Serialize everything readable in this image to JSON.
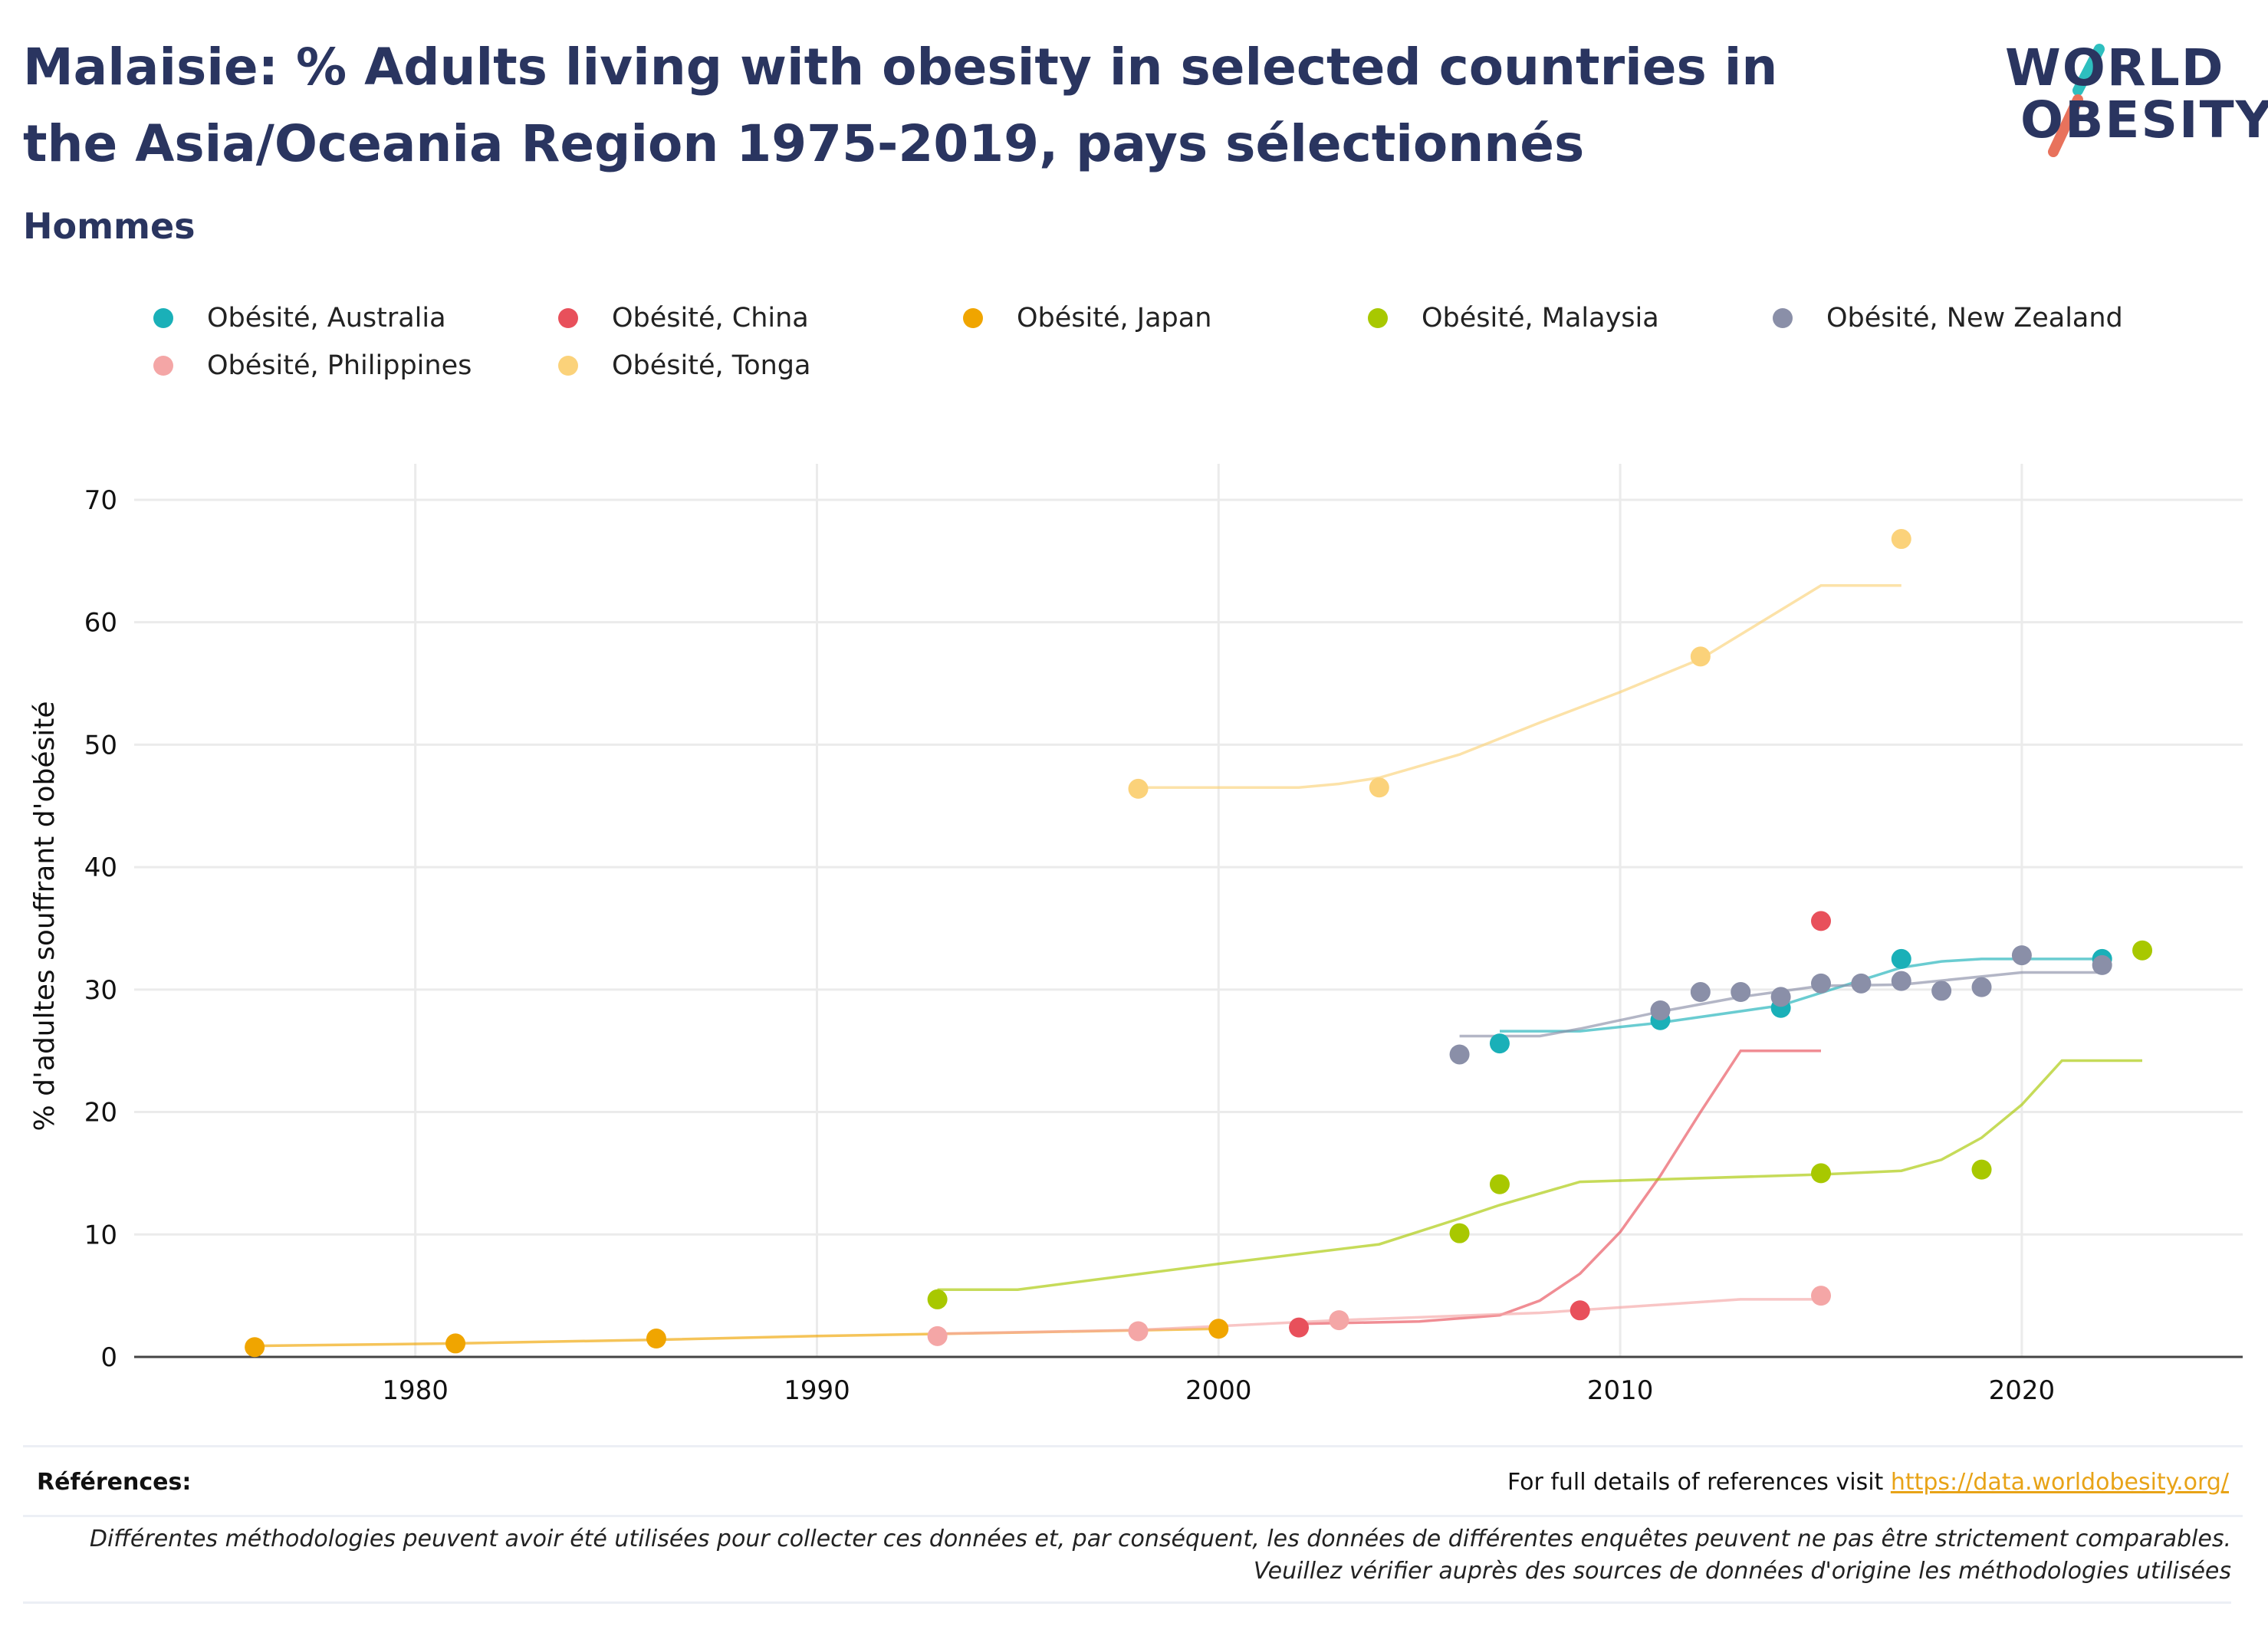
{
  "header": {
    "title": "Malaisie: % Adults living with obesity in selected countries in the Asia/Oceania Region 1975-2019, pays sélectionnés",
    "subtitle": "Hommes"
  },
  "logo": {
    "line1": "WORLD",
    "line2": "OBESITY",
    "colors": {
      "accent_teal": "#2ebfbf",
      "accent_coral": "#e8725c",
      "text": "#2a3560"
    }
  },
  "footer": {
    "refs_label": "Références:",
    "refs_text": "For full details of references visit ",
    "refs_link": "https://data.worldobesity.org/",
    "note": "Différentes méthodologies peuvent avoir été utilisées pour collecter ces données et, par conséquent, les données de différentes enquêtes peuvent ne pas être strictement comparables. Veuillez vérifier auprès des sources de données d'origine les méthodologies utilisées"
  },
  "chart_data": {
    "type": "scatter",
    "title": "",
    "xlabel": "",
    "ylabel": "% d'adultes souffrant d'obésité",
    "xlim": [
      1973,
      2025.5
    ],
    "ylim": [
      0,
      72
    ],
    "xticks": [
      1980,
      1990,
      2000,
      2010,
      2020
    ],
    "yticks": [
      0,
      10,
      20,
      30,
      40,
      50,
      60,
      70
    ],
    "grid": true,
    "legend_position": "top",
    "series": [
      {
        "name": "Obésité, Australia",
        "color": "#1ab0b8",
        "points": [
          [
            2007,
            25.6
          ],
          [
            2011,
            27.5
          ],
          [
            2014,
            28.5
          ],
          [
            2017,
            32.5
          ],
          [
            2022,
            32.5
          ]
        ],
        "trend": [
          [
            2007,
            26.6
          ],
          [
            2009,
            26.6
          ],
          [
            2011,
            27.3
          ],
          [
            2014,
            28.7
          ],
          [
            2017,
            31.8
          ],
          [
            2018,
            32.3
          ],
          [
            2019,
            32.5
          ],
          [
            2022,
            32.5
          ]
        ]
      },
      {
        "name": "Obésité, China",
        "color": "#e8505b",
        "points": [
          [
            2002,
            2.4
          ],
          [
            2009,
            3.8
          ],
          [
            2015,
            35.6
          ]
        ],
        "trend": [
          [
            2002,
            2.7
          ],
          [
            2005,
            2.9
          ],
          [
            2007,
            3.4
          ],
          [
            2008,
            4.6
          ],
          [
            2009,
            6.8
          ],
          [
            2010,
            10.2
          ],
          [
            2011,
            14.8
          ],
          [
            2012,
            20.0
          ],
          [
            2013,
            25.0
          ],
          [
            2015,
            25.0
          ]
        ]
      },
      {
        "name": "Obésité, Japan",
        "color": "#f0a500",
        "points": [
          [
            1976,
            0.8
          ],
          [
            1981,
            1.1
          ],
          [
            1986,
            1.5
          ],
          [
            2000,
            2.3
          ]
        ],
        "trend": [
          [
            1976,
            0.9
          ],
          [
            1981,
            1.1
          ],
          [
            1986,
            1.4
          ],
          [
            1990,
            1.7
          ],
          [
            1995,
            2.0
          ],
          [
            2000,
            2.3
          ]
        ]
      },
      {
        "name": "Obésité, Malaysia",
        "color": "#a8c800",
        "points": [
          [
            1993,
            4.7
          ],
          [
            2006,
            10.1
          ],
          [
            2007,
            14.1
          ],
          [
            2015,
            15.0
          ],
          [
            2019,
            15.3
          ],
          [
            2023,
            33.2
          ]
        ],
        "trend": [
          [
            1993,
            5.5
          ],
          [
            1995,
            5.5
          ],
          [
            2000,
            7.6
          ],
          [
            2004,
            9.2
          ],
          [
            2006,
            11.3
          ],
          [
            2007,
            12.4
          ],
          [
            2009,
            14.3
          ],
          [
            2015,
            14.9
          ],
          [
            2017,
            15.2
          ],
          [
            2018,
            16.1
          ],
          [
            2019,
            17.9
          ],
          [
            2020,
            20.6
          ],
          [
            2021,
            24.2
          ],
          [
            2023,
            24.2
          ]
        ]
      },
      {
        "name": "Obésité, New Zealand",
        "color": "#8a8fa8",
        "points": [
          [
            2006,
            24.7
          ],
          [
            2011,
            28.3
          ],
          [
            2012,
            29.8
          ],
          [
            2013,
            29.8
          ],
          [
            2014,
            29.4
          ],
          [
            2015,
            30.5
          ],
          [
            2016,
            30.5
          ],
          [
            2017,
            30.7
          ],
          [
            2018,
            29.9
          ],
          [
            2019,
            30.2
          ],
          [
            2020,
            32.8
          ],
          [
            2022,
            32.0
          ]
        ],
        "trend": [
          [
            2006,
            26.2
          ],
          [
            2008,
            26.2
          ],
          [
            2009,
            26.8
          ],
          [
            2011,
            28.2
          ],
          [
            2013,
            29.4
          ],
          [
            2015,
            30.3
          ],
          [
            2017,
            30.4
          ],
          [
            2020,
            31.4
          ],
          [
            2022,
            31.4
          ]
        ]
      },
      {
        "name": "Obésité, Philippines",
        "color": "#f4a6a6",
        "points": [
          [
            1993,
            1.7
          ],
          [
            1998,
            2.1
          ],
          [
            2003,
            3.0
          ],
          [
            2015,
            5.0
          ]
        ],
        "trend": [
          [
            1993,
            1.9
          ],
          [
            1998,
            2.2
          ],
          [
            2003,
            3.0
          ],
          [
            2008,
            3.6
          ],
          [
            2013,
            4.7
          ],
          [
            2015,
            4.7
          ]
        ]
      },
      {
        "name": "Obésité, Tonga",
        "color": "#fbd27a",
        "points": [
          [
            1998,
            46.4
          ],
          [
            2004,
            46.5
          ],
          [
            2012,
            57.2
          ],
          [
            2017,
            66.8
          ]
        ],
        "trend": [
          [
            1998,
            46.5
          ],
          [
            2002,
            46.5
          ],
          [
            2003,
            46.8
          ],
          [
            2004,
            47.3
          ],
          [
            2006,
            49.2
          ],
          [
            2008,
            51.8
          ],
          [
            2010,
            54.3
          ],
          [
            2012,
            57.0
          ],
          [
            2015,
            63.0
          ],
          [
            2017,
            63.0
          ]
        ]
      }
    ]
  }
}
